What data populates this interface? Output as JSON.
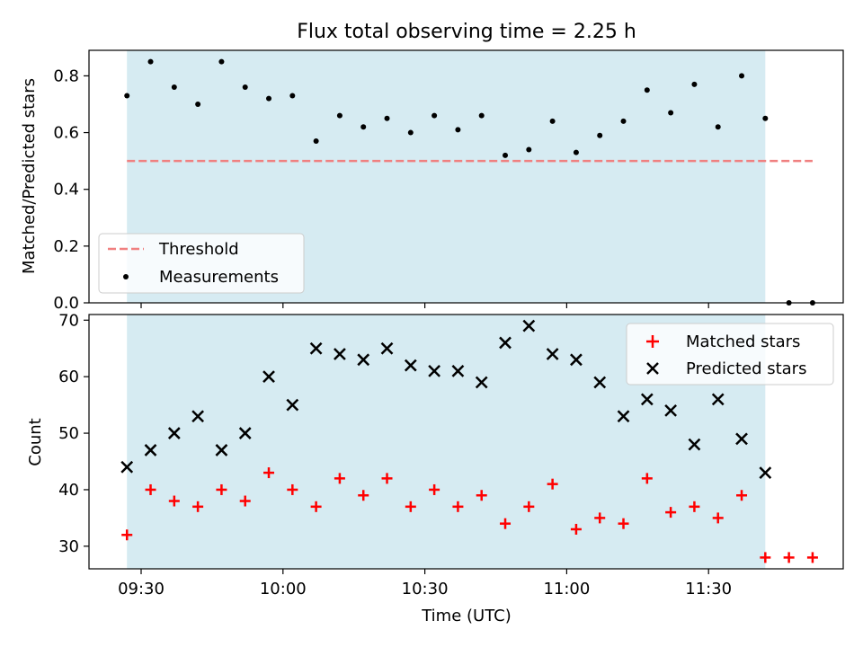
{
  "title": "Flux total observing time = 2.25 h",
  "xlabel": "Time (UTC)",
  "x_ticks": [
    "09:30",
    "10:00",
    "10:30",
    "11:00",
    "11:30"
  ],
  "shaded_color": "#add8e6",
  "chart_data": [
    {
      "type": "scatter",
      "ylabel": "Matched/Predicted stars",
      "ylim": [
        0,
        0.89
      ],
      "yticks": [
        "0.0",
        "0.2",
        "0.4",
        "0.6",
        "0.8"
      ],
      "grid": false,
      "legend_position": "lower-left",
      "shaded_span": {
        "from": "09:27",
        "to": "11:42"
      },
      "threshold": {
        "name": "Threshold",
        "value": 0.5,
        "from": "09:27",
        "to": "11:52",
        "color": "#f08080",
        "style": "dashed"
      },
      "series": [
        {
          "name": "Measurements",
          "color": "#000000",
          "marker": "dot",
          "x": [
            "09:27",
            "09:32",
            "09:37",
            "09:42",
            "09:47",
            "09:52",
            "09:57",
            "10:02",
            "10:07",
            "10:12",
            "10:17",
            "10:22",
            "10:27",
            "10:32",
            "10:37",
            "10:42",
            "10:47",
            "10:52",
            "10:57",
            "11:02",
            "11:07",
            "11:12",
            "11:17",
            "11:22",
            "11:27",
            "11:32",
            "11:37",
            "11:42",
            "11:47",
            "11:52"
          ],
          "values": [
            0.73,
            0.85,
            0.76,
            0.7,
            0.85,
            0.76,
            0.72,
            0.73,
            0.57,
            0.66,
            0.62,
            0.65,
            0.6,
            0.66,
            0.61,
            0.66,
            0.52,
            0.54,
            0.64,
            0.53,
            0.59,
            0.64,
            0.75,
            0.67,
            0.77,
            0.62,
            0.8,
            0.65,
            0.0,
            0.0
          ]
        }
      ]
    },
    {
      "type": "scatter",
      "ylabel": "Count",
      "ylim": [
        26,
        71
      ],
      "yticks": [
        "30",
        "40",
        "50",
        "60",
        "70"
      ],
      "grid": false,
      "legend_position": "top-right",
      "shaded_span": {
        "from": "09:27",
        "to": "11:42"
      },
      "series": [
        {
          "name": "Matched stars",
          "color": "#ff0000",
          "marker": "plus",
          "x": [
            "09:27",
            "09:32",
            "09:37",
            "09:42",
            "09:47",
            "09:52",
            "09:57",
            "10:02",
            "10:07",
            "10:12",
            "10:17",
            "10:22",
            "10:27",
            "10:32",
            "10:37",
            "10:42",
            "10:47",
            "10:52",
            "10:57",
            "11:02",
            "11:07",
            "11:12",
            "11:17",
            "11:22",
            "11:27",
            "11:32",
            "11:37",
            "11:42",
            "11:47",
            "11:52"
          ],
          "values": [
            32,
            40,
            38,
            37,
            40,
            38,
            43,
            40,
            37,
            42,
            39,
            42,
            37,
            40,
            37,
            39,
            34,
            37,
            41,
            33,
            35,
            34,
            42,
            36,
            37,
            35,
            39,
            28,
            28,
            28
          ]
        },
        {
          "name": "Predicted stars",
          "color": "#000000",
          "marker": "x",
          "x": [
            "09:27",
            "09:32",
            "09:37",
            "09:42",
            "09:47",
            "09:52",
            "09:57",
            "10:02",
            "10:07",
            "10:12",
            "10:17",
            "10:22",
            "10:27",
            "10:32",
            "10:37",
            "10:42",
            "10:47",
            "10:52",
            "10:57",
            "11:02",
            "11:07",
            "11:12",
            "11:17",
            "11:22",
            "11:27",
            "11:32",
            "11:37",
            "11:42"
          ],
          "values": [
            44,
            47,
            50,
            53,
            47,
            50,
            60,
            55,
            65,
            64,
            63,
            65,
            62,
            61,
            61,
            59,
            66,
            69,
            64,
            63,
            59,
            53,
            56,
            54,
            48,
            56,
            49,
            43
          ]
        }
      ]
    }
  ]
}
